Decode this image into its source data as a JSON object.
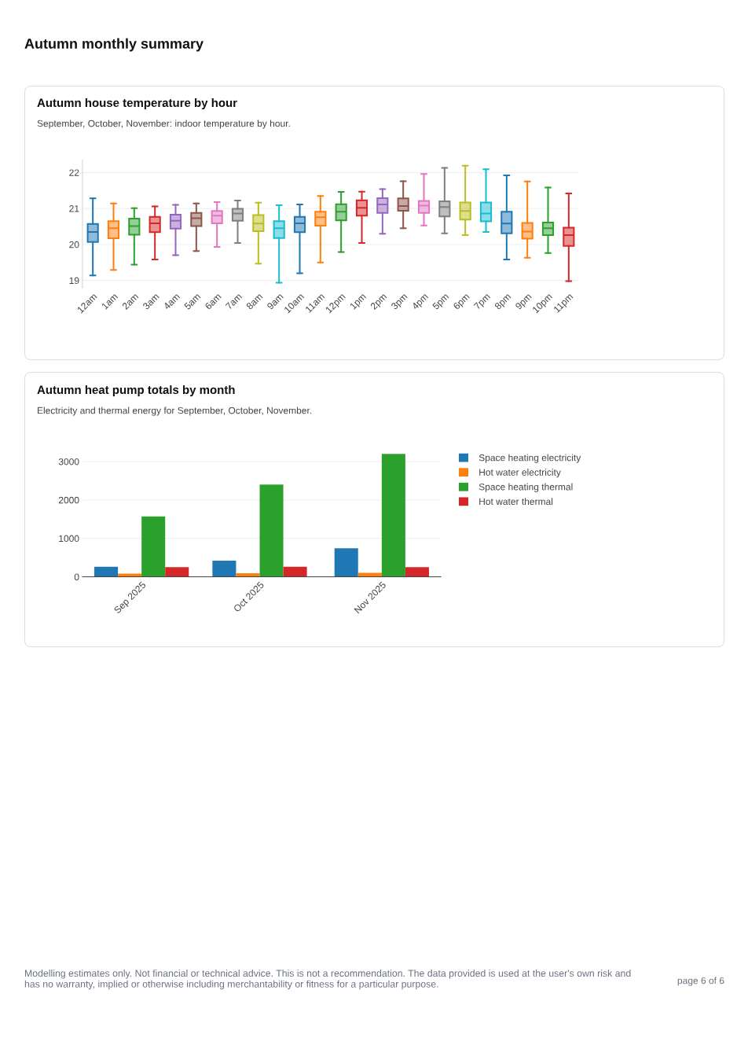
{
  "chart_data": [
    {
      "type": "box",
      "title": "Autumn house temperature by hour",
      "subtitle": "September, October, November: indoor temperature by hour.",
      "annotations": [
        "Autumn monthly summary"
      ],
      "categories": [
        "12am",
        "1am",
        "2am",
        "3am",
        "4am",
        "5am",
        "6am",
        "7am",
        "8am",
        "9am",
        "10am",
        "11am",
        "12pm",
        "1pm",
        "2pm",
        "3pm",
        "4pm",
        "5pm",
        "6pm",
        "7pm",
        "8pm",
        "9pm",
        "10pm",
        "11pm"
      ],
      "boxes": [
        {
          "low": 19.14,
          "q1": 20.07,
          "median": 20.35,
          "q3": 20.57,
          "high": 21.28
        },
        {
          "low": 19.29,
          "q1": 20.17,
          "median": 20.45,
          "q3": 20.65,
          "high": 21.14
        },
        {
          "low": 19.44,
          "q1": 20.27,
          "median": 20.51,
          "q3": 20.72,
          "high": 21.01
        },
        {
          "low": 19.58,
          "q1": 20.34,
          "median": 20.59,
          "q3": 20.77,
          "high": 21.06
        },
        {
          "low": 19.7,
          "q1": 20.44,
          "median": 20.66,
          "q3": 20.83,
          "high": 21.1
        },
        {
          "low": 19.82,
          "q1": 20.51,
          "median": 20.73,
          "q3": 20.88,
          "high": 21.14
        },
        {
          "low": 19.93,
          "q1": 20.59,
          "median": 20.8,
          "q3": 20.93,
          "high": 21.18
        },
        {
          "low": 20.04,
          "q1": 20.66,
          "median": 20.86,
          "q3": 20.99,
          "high": 21.22
        },
        {
          "low": 19.47,
          "q1": 20.37,
          "median": 20.58,
          "q3": 20.82,
          "high": 21.16
        },
        {
          "low": 18.94,
          "q1": 20.18,
          "median": 20.45,
          "q3": 20.65,
          "high": 21.09
        },
        {
          "low": 19.2,
          "q1": 20.34,
          "median": 20.59,
          "q3": 20.77,
          "high": 21.11
        },
        {
          "low": 19.5,
          "q1": 20.52,
          "median": 20.76,
          "q3": 20.91,
          "high": 21.35
        },
        {
          "low": 19.79,
          "q1": 20.67,
          "median": 20.91,
          "q3": 21.12,
          "high": 21.46
        },
        {
          "low": 20.04,
          "q1": 20.8,
          "median": 21.02,
          "q3": 21.23,
          "high": 21.47
        },
        {
          "low": 20.3,
          "q1": 20.88,
          "median": 21.11,
          "q3": 21.29,
          "high": 21.54
        },
        {
          "low": 20.45,
          "q1": 20.94,
          "median": 21.07,
          "q3": 21.28,
          "high": 21.76
        },
        {
          "low": 20.53,
          "q1": 20.88,
          "median": 21.08,
          "q3": 21.21,
          "high": 21.96
        },
        {
          "low": 20.31,
          "q1": 20.78,
          "median": 21.04,
          "q3": 21.2,
          "high": 22.13
        },
        {
          "low": 20.26,
          "q1": 20.69,
          "median": 20.93,
          "q3": 21.17,
          "high": 22.19
        },
        {
          "low": 20.35,
          "q1": 20.64,
          "median": 20.86,
          "q3": 21.17,
          "high": 22.09
        },
        {
          "low": 19.58,
          "q1": 20.31,
          "median": 20.58,
          "q3": 20.91,
          "high": 21.92
        },
        {
          "low": 19.63,
          "q1": 20.16,
          "median": 20.36,
          "q3": 20.6,
          "high": 21.75
        },
        {
          "low": 19.76,
          "q1": 20.26,
          "median": 20.45,
          "q3": 20.61,
          "high": 21.58
        },
        {
          "low": 18.98,
          "q1": 19.96,
          "median": 20.26,
          "q3": 20.47,
          "high": 21.42
        }
      ],
      "colors": [
        "#1f77b4",
        "#ff7f0e",
        "#2ca02c",
        "#d62728",
        "#9467bd",
        "#8c564b",
        "#e377c2",
        "#7f7f7f",
        "#bcbd22",
        "#17becf",
        "#1f77b4",
        "#ff7f0e",
        "#2ca02c",
        "#d62728",
        "#9467bd",
        "#8c564b",
        "#e377c2",
        "#7f7f7f",
        "#bcbd22",
        "#17becf",
        "#1f77b4",
        "#ff7f0e",
        "#2ca02c",
        "#d62728"
      ],
      "ylim": [
        18.78,
        22.35
      ],
      "yticks": [
        19,
        20,
        21,
        22
      ],
      "grid": "y"
    },
    {
      "type": "bar",
      "title": "Autumn heat pump totals by month",
      "subtitle": "Electricity and thermal energy for September, October, November.",
      "annotations": [
        "Modelling estimates only. Not financial or technical advice. This is not a recommendation. The data provided is used at the user's own risk and has no warranty, implied or otherwise including merchantability or fitness for a particular purpose.",
        "page 6 of 6"
      ],
      "x": [
        "2025-09",
        "2025-10",
        "2025-11"
      ],
      "series": [
        {
          "name": "Space heating electricity",
          "color": "#1f77b4",
          "values": [
            260,
            420,
            740
          ]
        },
        {
          "name": "Hot water electricity",
          "color": "#ff7f0e",
          "values": [
            80,
            90,
            100
          ]
        },
        {
          "name": "Space heating thermal",
          "color": "#2ca02c",
          "values": [
            1570,
            2400,
            3200
          ]
        },
        {
          "name": "Hot water thermal",
          "color": "#d62728",
          "values": [
            250,
            260,
            250
          ]
        }
      ],
      "xlim": [
        "2025-08-17",
        "2025-11-16"
      ],
      "xticks": [
        {
          "value": "2025-09",
          "label": "Sep 2025"
        },
        {
          "value": "2025-10",
          "label": "Oct 2025"
        },
        {
          "value": "2025-11",
          "label": "Nov 2025"
        }
      ],
      "ylim": [
        0,
        3210
      ],
      "yticks": [
        0,
        1000,
        2000,
        3000
      ],
      "grid": "y",
      "legend": "right"
    }
  ]
}
